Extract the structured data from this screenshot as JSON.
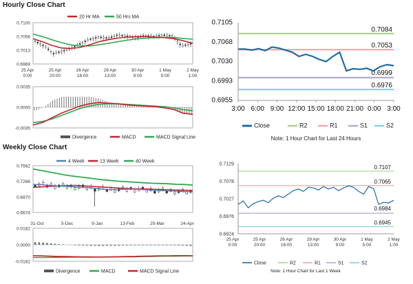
{
  "titles": {
    "hourly": "Hourly Close Chart",
    "weekly": "Weekly Close Chart"
  },
  "chart_data": [
    {
      "id": "hourly-ma",
      "type": "line",
      "legend": [
        "20 Hr MA",
        "50 Hrs MA"
      ],
      "y_ticks": [
        "0.7100",
        "0.7056",
        "0.7013",
        "0.6969"
      ],
      "ylim": [
        0.695,
        0.711
      ],
      "x_ticks": [
        [
          "25 Apr",
          "0:00"
        ],
        [
          "25 Apr",
          "20:00"
        ],
        [
          "26 Apr",
          "16:00"
        ],
        [
          "29 Apr",
          "13:00"
        ],
        [
          "30 Apr",
          "9:00"
        ],
        [
          "1 May",
          "5:00"
        ],
        [
          "2 May",
          "1:00"
        ]
      ],
      "series": [
        {
          "name": "20 Hr MA",
          "color": "#c0262d",
          "values": [
            0.7048,
            0.7036,
            0.7022,
            0.7012,
            0.701,
            0.7014,
            0.7024,
            0.7036,
            0.7044,
            0.705,
            0.7054,
            0.7056,
            0.7056,
            0.7054,
            0.7052,
            0.7048,
            0.704,
            0.703
          ]
        },
        {
          "name": "50 Hrs MA",
          "color": "#2fa84f",
          "values": [
            0.7066,
            0.7056,
            0.7044,
            0.7033,
            0.7024,
            0.702,
            0.702,
            0.7024,
            0.703,
            0.7036,
            0.7042,
            0.7047,
            0.705,
            0.7052,
            0.7053,
            0.7052,
            0.7049,
            0.7046
          ]
        },
        {
          "name": "price",
          "color": "#333333",
          "values": [
            0.7038,
            0.702,
            0.699,
            0.7,
            0.7012,
            0.703,
            0.7046,
            0.7054,
            0.705,
            0.7062,
            0.7058,
            0.7052,
            0.706,
            0.7056,
            0.7062,
            0.7058,
            0.702,
            0.7028
          ]
        }
      ]
    },
    {
      "id": "hourly-macd",
      "type": "line",
      "legend": [
        "Divergence",
        "MACD",
        "MACD Signal Line"
      ],
      "y_ticks": [
        "0.0035",
        "0.0000",
        "-0.0035"
      ],
      "ylim": [
        -0.0035,
        0.0035
      ],
      "series": [
        {
          "name": "MACD",
          "color": "#c0262d",
          "values": [
            -0.003,
            -0.0026,
            -0.0018,
            -0.001,
            -0.0004,
            0.0002,
            0.0006,
            0.0008,
            0.0007,
            0.0006,
            0.0004,
            0.0003,
            0.0002,
            0.0001,
            -0.0001,
            -0.0004,
            -0.001,
            -0.0012
          ]
        },
        {
          "name": "MACD Signal Line",
          "color": "#2fa84f",
          "values": [
            -0.0026,
            -0.0024,
            -0.002,
            -0.0014,
            -0.0008,
            -0.0002,
            0.0002,
            0.0005,
            0.0006,
            0.0006,
            0.0005,
            0.0004,
            0.0003,
            0.0002,
            0.0001,
            -0.0001,
            -0.0004,
            -0.0006
          ]
        }
      ]
    },
    {
      "id": "hourly-24h",
      "type": "line",
      "legend": [
        "Close",
        "R2",
        "R1",
        "S1",
        "S2"
      ],
      "note": "Note: 1 Hour Chart for Last 24 Hours",
      "y_ticks": [
        "0.7105",
        "0.7068",
        "0.7030",
        "0.6993",
        "0.6955"
      ],
      "ylim": [
        0.6955,
        0.7105
      ],
      "x_ticks": [
        "3:00",
        "6:00",
        "9:00",
        "12:00",
        "15:00",
        "18:00",
        "21:00",
        "0:00",
        "3:00"
      ],
      "levels": [
        {
          "name": "R2",
          "value": 0.7084,
          "label": "0.7084",
          "color": "#a8d08d"
        },
        {
          "name": "R1",
          "value": 0.7053,
          "label": "0.7053",
          "color": "#f4a6a6"
        },
        {
          "name": "S1",
          "value": 0.6999,
          "label": "0.6999",
          "color": "#b4a7d6"
        },
        {
          "name": "S2",
          "value": 0.6976,
          "label": "0.6976",
          "color": "#7fd0e8"
        }
      ],
      "series": [
        {
          "name": "Close",
          "color": "#1f6aa5",
          "values": [
            0.7054,
            0.7054,
            0.7052,
            0.7055,
            0.7051,
            0.7058,
            0.7056,
            0.7052,
            0.7048,
            0.704,
            0.7044,
            0.704,
            0.7034,
            0.703,
            0.704,
            0.7048,
            0.7012,
            0.7016,
            0.7015,
            0.7017,
            0.7012,
            0.702,
            0.7024,
            0.7022
          ]
        }
      ]
    },
    {
      "id": "weekly-ma",
      "type": "line",
      "legend": [
        "4 Week",
        "13 Week",
        "40 Week"
      ],
      "y_ticks": [
        "0.7562",
        "0.7266",
        "0.6970",
        "0.6674"
      ],
      "ylim": [
        0.6674,
        0.7562
      ],
      "x_ticks": [
        "31-Oct",
        "5-Dec",
        "9-Jan",
        "13-Feb",
        "20-Mar",
        "24-Apr"
      ],
      "series": [
        {
          "name": "4 Week",
          "color": "#4f81bd",
          "values": [
            0.721,
            0.72,
            0.719,
            0.718,
            0.717,
            0.716,
            0.715,
            0.714,
            0.712,
            0.711,
            0.711,
            0.7115,
            0.712,
            0.711,
            0.71,
            0.709,
            0.7085,
            0.708,
            0.707,
            0.7065
          ]
        },
        {
          "name": "13 Week",
          "color": "#c0262d",
          "values": [
            0.715,
            0.716,
            0.717,
            0.718,
            0.7185,
            0.719,
            0.718,
            0.717,
            0.716,
            0.715,
            0.714,
            0.713,
            0.7125,
            0.712,
            0.7115,
            0.711,
            0.7105,
            0.71,
            0.7095,
            0.709
          ]
        },
        {
          "name": "40 Week",
          "color": "#2fa84f",
          "values": [
            0.75,
            0.747,
            0.744,
            0.741,
            0.738,
            0.736,
            0.734,
            0.732,
            0.73,
            0.7285,
            0.727,
            0.726,
            0.725,
            0.724,
            0.723,
            0.7225,
            0.722,
            0.721,
            0.7205,
            0.7195
          ]
        }
      ]
    },
    {
      "id": "weekly-macd",
      "type": "line",
      "legend": [
        "Divergence",
        "MACD",
        "MACD Signal Line"
      ],
      "y_ticks": [
        "0.0182",
        "0.0000",
        "-0.0182"
      ],
      "ylim": [
        -0.0182,
        0.0182
      ],
      "series": [
        {
          "name": "MACD",
          "color": "#c0262d",
          "values": [
            -0.012,
            -0.0122,
            -0.0125,
            -0.0128,
            -0.013,
            -0.0132,
            -0.0133,
            -0.0134,
            -0.0134,
            -0.0133,
            -0.0132,
            -0.013,
            -0.0128,
            -0.0126,
            -0.0124,
            -0.0122,
            -0.0121,
            -0.012,
            -0.012,
            -0.0121
          ]
        },
        {
          "name": "MACD Signal Line",
          "color": "#2fa84f",
          "values": [
            -0.014,
            -0.014,
            -0.0139,
            -0.0138,
            -0.0137,
            -0.0136,
            -0.0136,
            -0.0136,
            -0.0135,
            -0.0135,
            -0.0134,
            -0.0133,
            -0.0132,
            -0.013,
            -0.0128,
            -0.0126,
            -0.0125,
            -0.0124,
            -0.0123,
            -0.0122
          ]
        }
      ]
    },
    {
      "id": "weekly-1w",
      "type": "line",
      "legend": [
        "Close",
        "R2",
        "R1",
        "S1",
        "S2"
      ],
      "note": "Note: 1 Hour Chart for Last 1 Week",
      "y_ticks": [
        "0.7129",
        "0.7078",
        "0.7027",
        "0.6976",
        "0.6924"
      ],
      "ylim": [
        0.6924,
        0.7129
      ],
      "x_ticks": [
        [
          "25 Apr",
          "0:00"
        ],
        [
          "25 Apr",
          "20:00"
        ],
        [
          "26 Apr",
          "16:00"
        ],
        [
          "29 Apr",
          "13:00"
        ],
        [
          "30 Apr",
          "9:00"
        ],
        [
          "1 May",
          "5:00"
        ],
        [
          "2 May",
          "1:00"
        ]
      ],
      "levels": [
        {
          "name": "R2",
          "value": 0.7107,
          "label": "0.7107",
          "color": "#a8d08d"
        },
        {
          "name": "R1",
          "value": 0.7065,
          "label": "0.7065",
          "color": "#f4a6a6"
        },
        {
          "name": "S1",
          "value": 0.6984,
          "label": "0.6984",
          "color": "#b4a7d6"
        },
        {
          "name": "S2",
          "value": 0.6945,
          "label": "0.6945",
          "color": "#7fd0e8"
        }
      ],
      "series": [
        {
          "name": "Close",
          "color": "#1f6aa5",
          "values": [
            0.701,
            0.702,
            0.7,
            0.7012,
            0.7018,
            0.7022,
            0.7015,
            0.7028,
            0.7035,
            0.703,
            0.704,
            0.705,
            0.7055,
            0.7048,
            0.706,
            0.7058,
            0.7052,
            0.7062,
            0.7055,
            0.706,
            0.705,
            0.7058,
            0.7064,
            0.706,
            0.7048,
            0.704,
            0.7062,
            0.7056,
            0.701,
            0.7016,
            0.7014,
            0.7022
          ]
        }
      ]
    }
  ]
}
